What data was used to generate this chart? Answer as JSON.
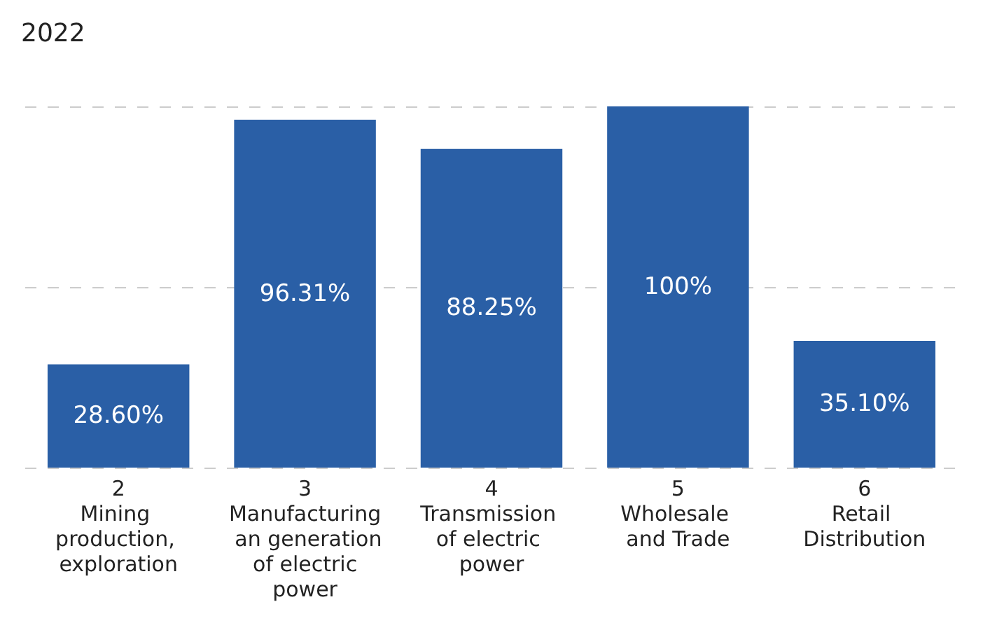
{
  "chart_data": {
    "type": "bar",
    "title": "2022",
    "categories": [
      "2\nMining production, exploration",
      "3\nManufacturing an generation of electric power",
      "4\nTransmission of electric power",
      "5\nWholesale and Trade",
      "6\nRetail Distribution"
    ],
    "values": [
      28.6,
      96.31,
      88.25,
      100,
      35.1
    ],
    "value_labels": [
      "28.60%",
      "96.31%",
      "88.25%",
      "100%",
      "35.10%"
    ],
    "color": "#2a5fa6",
    "ylim": [
      0,
      100
    ],
    "yticks": [
      {
        "value": 0,
        "label": null
      },
      {
        "value": 50,
        "label": null
      },
      {
        "value": 100,
        "label": null
      }
    ],
    "grid": "y",
    "tick_labels": "x"
  }
}
